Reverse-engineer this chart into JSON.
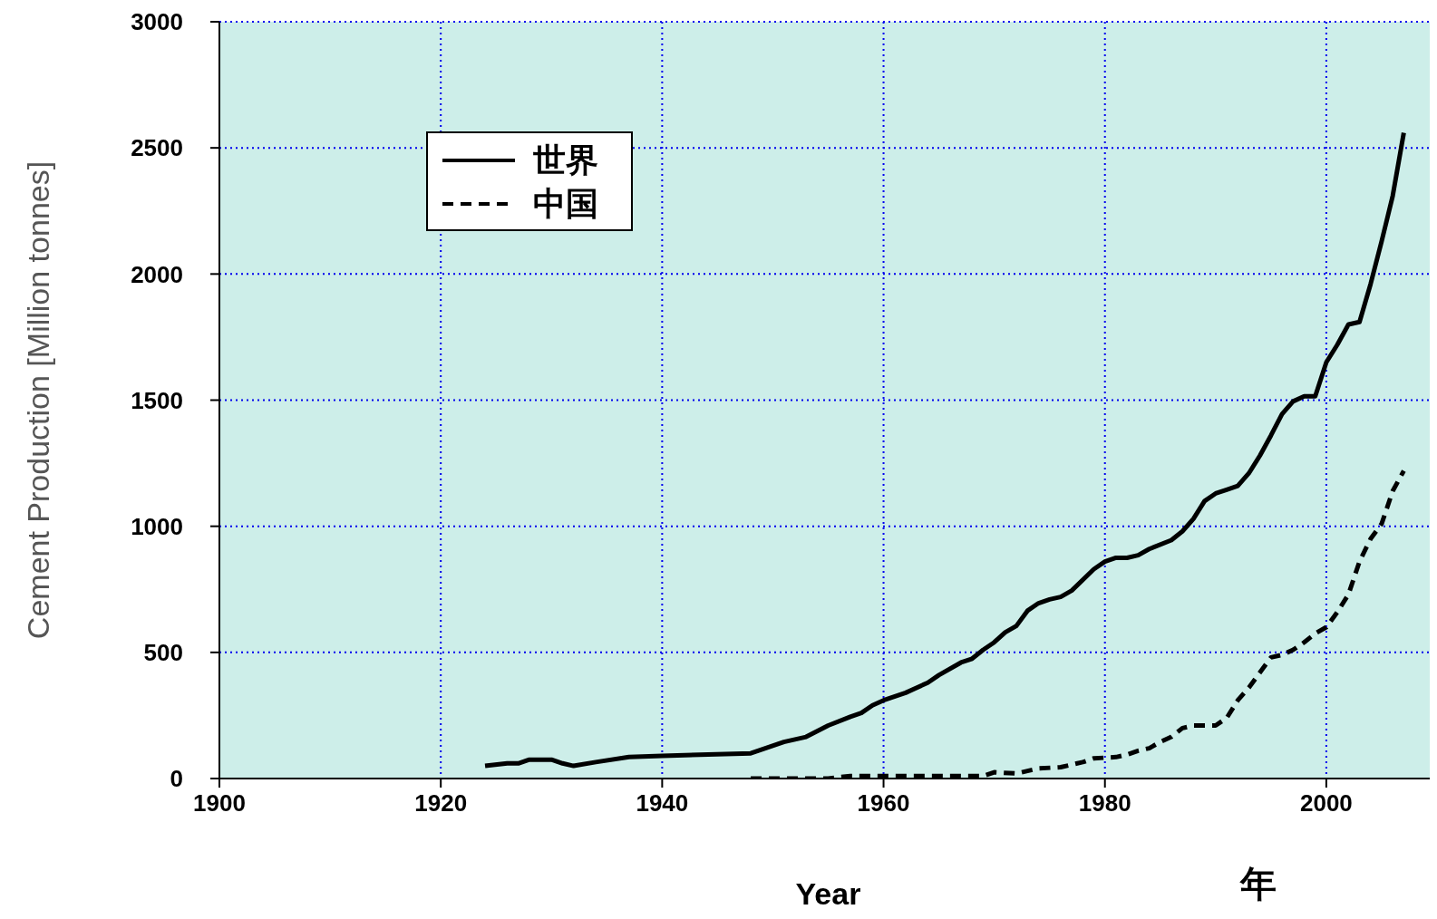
{
  "chart_data": {
    "type": "line",
    "xlabel": "Year",
    "ylabel": "Cement Production [Million tonnes]",
    "annotations": [
      "年"
    ],
    "xlim": [
      1900,
      2010
    ],
    "xticks": [
      1900,
      1920,
      1940,
      1960,
      1980,
      2000
    ],
    "ylim": [
      0,
      3000
    ],
    "yticks": [
      0,
      500,
      1000,
      1500,
      2000,
      2500,
      3000
    ],
    "grid": true,
    "legend": "top left",
    "marker": "none",
    "series": [
      {
        "name": "世界",
        "color": "#000000",
        "line_style": "solid",
        "x": [
          1924,
          1926,
          1927,
          1928,
          1930,
          1931,
          1932,
          1934,
          1937,
          1940,
          1948,
          1951,
          1953,
          1955,
          1957,
          1958,
          1959,
          1960,
          1962,
          1964,
          1965,
          1967,
          1968,
          1969,
          1970,
          1971,
          1972,
          1973,
          1974,
          1975,
          1976,
          1977,
          1979,
          1980,
          1981,
          1982,
          1983,
          1984,
          1986,
          1987,
          1988,
          1989,
          1990,
          1991,
          1992,
          1993,
          1994,
          1995,
          1996,
          1997,
          1998,
          1999,
          2000,
          2001,
          2002,
          2003,
          2004,
          2005,
          2006,
          2007
        ],
        "values": [
          50,
          60,
          60,
          75,
          75,
          60,
          50,
          65,
          85,
          90,
          100,
          145,
          165,
          210,
          245,
          260,
          290,
          310,
          340,
          380,
          410,
          460,
          475,
          510,
          540,
          580,
          605,
          665,
          695,
          710,
          720,
          745,
          830,
          860,
          875,
          875,
          885,
          910,
          945,
          980,
          1030,
          1100,
          1130,
          1145,
          1160,
          1210,
          1280,
          1360,
          1445,
          1495,
          1515,
          1515,
          1650,
          1720,
          1800,
          1810,
          1960,
          2130,
          2310,
          2560
        ]
      },
      {
        "name": "中国",
        "color": "#000000",
        "line_style": "dashed",
        "x": [
          1948,
          1955,
          1957,
          1969,
          1970,
          1972,
          1974,
          1976,
          1978,
          1979,
          1981,
          1982,
          1983,
          1984,
          1985,
          1986,
          1987,
          1988,
          1990,
          1991,
          1992,
          1993,
          1994,
          1995,
          1996,
          1997,
          1998,
          1999,
          2000,
          2001,
          2002,
          2003,
          2004,
          2005,
          2006,
          2007
        ],
        "values": [
          0,
          0,
          10,
          10,
          25,
          20,
          40,
          45,
          65,
          80,
          85,
          95,
          110,
          120,
          145,
          165,
          200,
          210,
          210,
          240,
          310,
          360,
          420,
          480,
          490,
          510,
          540,
          575,
          600,
          660,
          730,
          860,
          950,
          1010,
          1140,
          1220
        ]
      }
    ]
  }
}
